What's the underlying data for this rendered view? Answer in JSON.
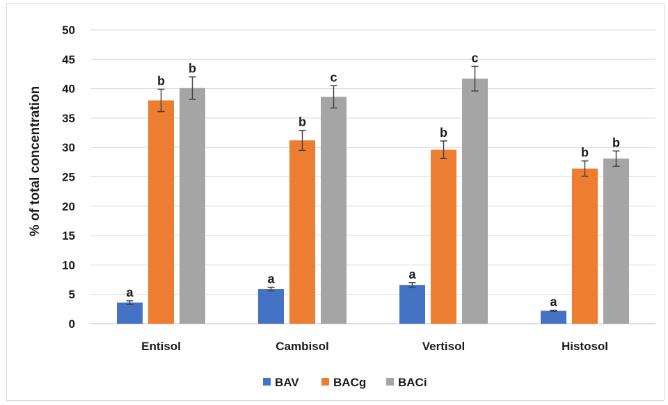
{
  "chart_data": {
    "type": "bar",
    "title": "",
    "xlabel": "",
    "ylabel": "% of total concentration",
    "ylim": [
      0,
      50
    ],
    "yticks": [
      0,
      5,
      10,
      15,
      20,
      25,
      30,
      35,
      40,
      45,
      50
    ],
    "grid": true,
    "legend_position": "bottom",
    "categories": [
      "Entisol",
      "Cambisol",
      "Vertisol",
      "Histosol"
    ],
    "series": [
      {
        "name": "BAV",
        "color": "#4472C4",
        "values": [
          3.6,
          5.9,
          6.6,
          2.2
        ],
        "errors": [
          0.3,
          0.3,
          0.4,
          0.1
        ],
        "labels": [
          "a",
          "a",
          "a",
          "a"
        ]
      },
      {
        "name": "BACg",
        "color": "#ED7D31",
        "values": [
          38.0,
          31.2,
          29.6,
          26.4
        ],
        "errors": [
          1.9,
          1.7,
          1.5,
          1.3
        ],
        "labels": [
          "b",
          "b",
          "b",
          "b"
        ]
      },
      {
        "name": "BACi",
        "color": "#A5A5A5",
        "values": [
          40.1,
          38.6,
          41.7,
          28.1
        ],
        "errors": [
          1.9,
          1.9,
          2.1,
          1.3
        ],
        "labels": [
          "b",
          "c",
          "c",
          "b"
        ]
      }
    ]
  }
}
